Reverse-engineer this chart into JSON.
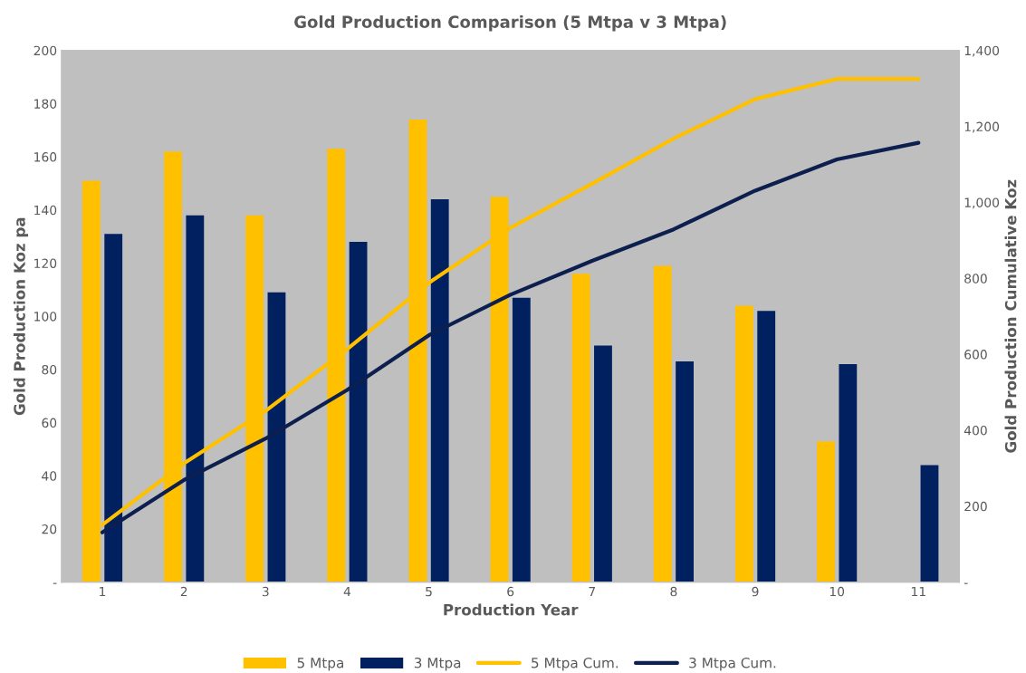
{
  "chart_data": {
    "type": "bar",
    "title": "Gold Production Comparison (5 Mtpa v 3 Mtpa)",
    "xlabel": "Production Year",
    "ylabel": "Gold Production Koz pa",
    "y2label": "Gold Production Cumulative Koz",
    "categories": [
      "1",
      "2",
      "3",
      "4",
      "5",
      "6",
      "7",
      "8",
      "9",
      "10",
      "11"
    ],
    "series": [
      {
        "name": "5 Mtpa",
        "color": "#ffc000",
        "values": [
          151,
          162,
          138,
          163,
          174,
          145,
          116,
          119,
          104,
          53,
          null
        ]
      },
      {
        "name": "3 Mtpa",
        "color": "#002060",
        "values": [
          131,
          138,
          109,
          128,
          144,
          107,
          89,
          83,
          102,
          82,
          44
        ]
      },
      {
        "name": "5 Mtpa Cum.",
        "type": "line",
        "axis": "y2",
        "color": "#ffc000",
        "values": [
          151,
          313,
          451,
          614,
          788,
          933,
          1049,
          1168,
          1272,
          1325,
          1325
        ]
      },
      {
        "name": "3 Mtpa Cum.",
        "type": "line",
        "axis": "y2",
        "color": "#0d1f4f",
        "values": [
          131,
          269,
          378,
          506,
          650,
          757,
          846,
          929,
          1031,
          1113,
          1157
        ]
      }
    ],
    "ylim": [
      0,
      200
    ],
    "yticks": [
      {
        "value": 0,
        "label": "-"
      },
      20,
      40,
      60,
      80,
      100,
      120,
      140,
      160,
      180,
      200
    ],
    "y2lim": [
      0,
      1400
    ],
    "y2ticks": [
      {
        "value": 0,
        "label": "-"
      },
      200,
      400,
      600,
      800,
      {
        "value": 1000,
        "label": "1,000"
      },
      {
        "value": 1200,
        "label": "1,200"
      },
      {
        "value": 1400,
        "label": "1,400"
      }
    ],
    "grid": false,
    "legend": "bottom",
    "marker": "none",
    "line_style": "solid"
  }
}
